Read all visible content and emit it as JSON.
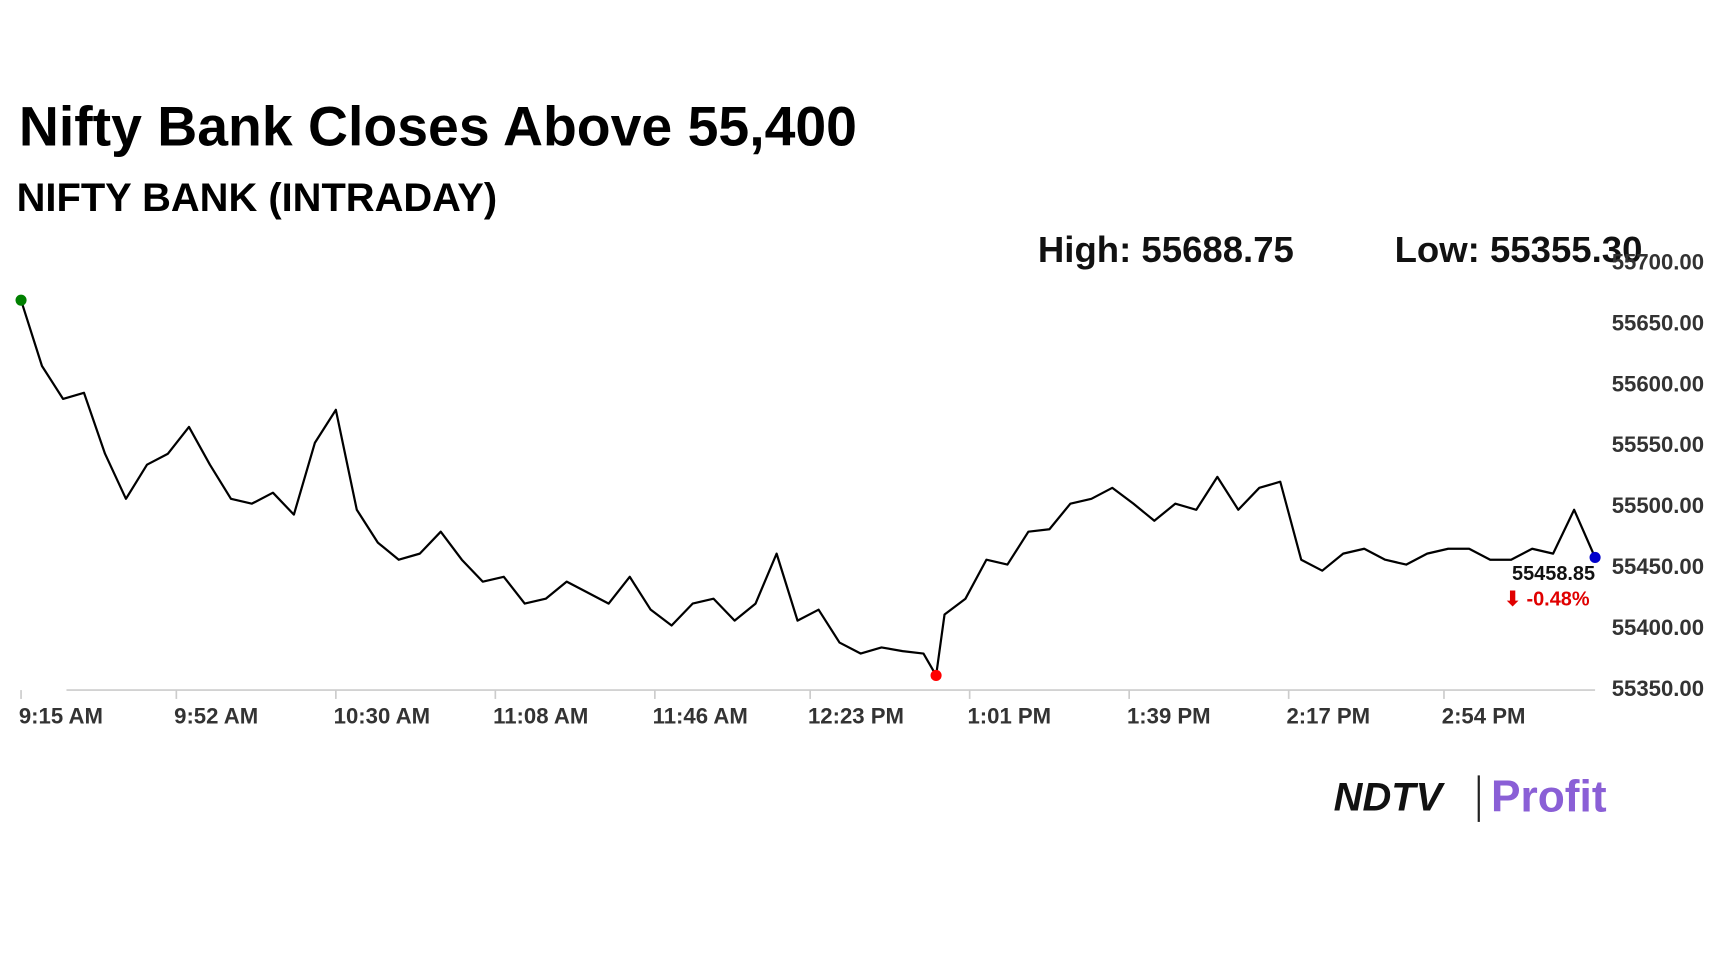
{
  "chart_data": {
    "type": "line",
    "title": "Nifty Bank Closes Above 55,400",
    "subtitle": "NIFTY BANK (INTRADAY)",
    "high_label": "High: 55688.75",
    "low_label": "Low: 55355.30",
    "change_label": "⬇ -0.48%",
    "color": "#000000",
    "x": [
      0,
      5,
      10,
      15,
      20,
      25,
      30,
      35,
      40,
      45,
      50,
      55,
      60,
      65,
      70,
      75,
      80,
      85,
      90,
      95,
      100,
      105,
      110,
      115,
      120,
      125,
      130,
      135,
      140,
      145,
      150,
      155,
      160,
      165,
      170,
      175,
      180,
      185,
      190,
      195,
      200,
      205,
      210,
      215,
      218,
      220,
      225,
      230,
      235,
      240,
      245,
      250,
      255,
      260,
      265,
      270,
      275,
      280,
      285,
      290,
      295,
      300,
      305,
      310,
      315,
      320,
      325,
      330,
      335,
      340,
      345,
      350,
      355,
      360,
      365,
      370,
      375
    ],
    "values": [
      55670,
      55616,
      55589,
      55594,
      55544,
      55507,
      55535,
      55544,
      55566,
      55535,
      55507,
      55503,
      55512,
      55494,
      55553,
      55580,
      55498,
      55471,
      55457,
      55462,
      55480,
      55457,
      55439,
      55443,
      55421,
      55425,
      55439,
      55430,
      55421,
      55443,
      55416,
      55403,
      55421,
      55425,
      55407,
      55421,
      55462,
      55407,
      55416,
      55389,
      55380,
      55385,
      55382,
      55380,
      55362,
      55412,
      55425,
      55457,
      55453,
      55480,
      55482,
      55503,
      55507,
      55516,
      55503,
      55489,
      55503,
      55498,
      55525,
      55498,
      55516,
      55521,
      55457,
      55448,
      55462,
      55466,
      55457,
      55453,
      55462,
      55466,
      55466,
      55457,
      55457,
      55466,
      55462,
      55498,
      55458.85
    ],
    "xlim": [
      0,
      375
    ],
    "xticks": [
      {
        "value": 0,
        "label": "9:15 AM"
      },
      {
        "value": 37,
        "label": "9:52 AM"
      },
      {
        "value": 75,
        "label": "10:30 AM"
      },
      {
        "value": 113,
        "label": "11:08 AM"
      },
      {
        "value": 151,
        "label": "11:46 AM"
      },
      {
        "value": 188,
        "label": "12:23 PM"
      },
      {
        "value": 226,
        "label": "1:01 PM"
      },
      {
        "value": 264,
        "label": "1:39 PM"
      },
      {
        "value": 302,
        "label": "2:17 PM"
      },
      {
        "value": 339,
        "label": "2:54 PM"
      }
    ],
    "ylim": [
      55350,
      55700
    ],
    "yticks": [
      {
        "value": 55350,
        "label": "55350.00"
      },
      {
        "value": 55400,
        "label": "55400.00"
      },
      {
        "value": 55450,
        "label": "55450.00"
      },
      {
        "value": 55500,
        "label": "55500.00"
      },
      {
        "value": 55550,
        "label": "55550.00"
      },
      {
        "value": 55600,
        "label": "55600.00"
      },
      {
        "value": 55650,
        "label": "55650.00"
      },
      {
        "value": 55700,
        "label": "55700.00"
      }
    ],
    "markers": {
      "start_color": "#008000",
      "low_color": "#ff0000",
      "end_color": "#0000cc"
    }
  },
  "brand": {
    "left": "NDTV",
    "right": "Profit"
  }
}
